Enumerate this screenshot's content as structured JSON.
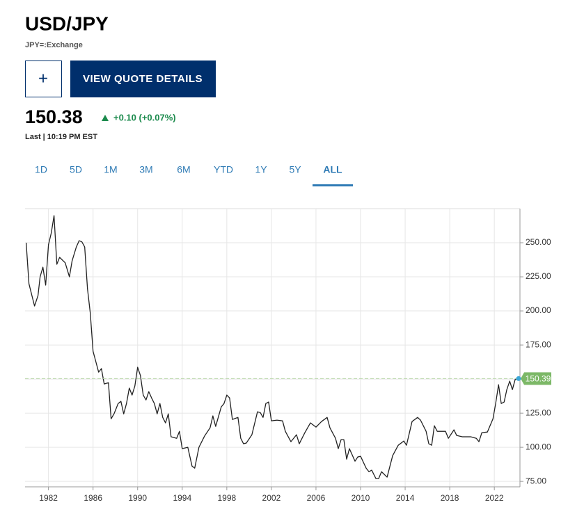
{
  "header": {
    "title": "USD/JPY",
    "symbol": "JPY=:Exchange"
  },
  "buttons": {
    "add": "+",
    "details": "VIEW QUOTE DETAILS"
  },
  "quote": {
    "price": "150.38",
    "change": "+0.10 (+0.07%)",
    "status": "Last | 10:19 PM EST"
  },
  "tabs": [
    "1D",
    "5D",
    "1M",
    "3M",
    "6M",
    "YTD",
    "1Y",
    "5Y",
    "ALL"
  ],
  "active_tab": "ALL",
  "chart_data": {
    "type": "line",
    "color": "#222222",
    "grid": true,
    "xlim": [
      1979.9,
      2024.3
    ],
    "ylim": [
      71,
      275
    ],
    "xticks": [
      1982,
      1986,
      1990,
      1994,
      1998,
      2002,
      2006,
      2010,
      2014,
      2018,
      2022
    ],
    "yticks": [
      {
        "value": 75,
        "label": "75.00"
      },
      {
        "value": 100,
        "label": "100.00"
      },
      {
        "value": 125,
        "label": "125.00"
      },
      {
        "value": 150,
        "label": "150.00"
      },
      {
        "value": 175,
        "label": "175.00"
      },
      {
        "value": 200,
        "label": "200.00"
      },
      {
        "value": 225,
        "label": "225.00"
      },
      {
        "value": 250,
        "label": "250.00"
      }
    ],
    "current_price": 150.39,
    "current_color": "#7cb867",
    "x": [
      1980.0,
      1980.25,
      1980.75,
      1981.06,
      1981.25,
      1981.5,
      1981.75,
      1982.0,
      1982.25,
      1982.5,
      1982.75,
      1983.0,
      1983.5,
      1983.88,
      1984.12,
      1984.5,
      1984.75,
      1985.0,
      1985.25,
      1985.5,
      1985.75,
      1986.0,
      1986.25,
      1986.5,
      1986.75,
      1987.0,
      1987.38,
      1987.62,
      1987.88,
      1988.25,
      1988.5,
      1988.75,
      1989.0,
      1989.25,
      1989.5,
      1989.75,
      1990.0,
      1990.25,
      1990.5,
      1990.75,
      1991.0,
      1991.25,
      1991.5,
      1991.75,
      1992.0,
      1992.25,
      1992.5,
      1992.75,
      1993.0,
      1993.5,
      1993.75,
      1994.0,
      1994.5,
      1994.88,
      1995.12,
      1995.5,
      1996.0,
      1996.5,
      1996.75,
      1997.0,
      1997.5,
      1997.75,
      1998.0,
      1998.25,
      1998.5,
      1999.0,
      1999.25,
      1999.5,
      1999.75,
      2000.25,
      2000.75,
      2001.0,
      2001.25,
      2001.5,
      2001.75,
      2002.0,
      2002.5,
      2003.0,
      2003.25,
      2003.75,
      2004.25,
      2004.5,
      2005.0,
      2005.5,
      2006.0,
      2006.5,
      2007.0,
      2007.25,
      2007.75,
      2008.0,
      2008.25,
      2008.5,
      2008.75,
      2009.0,
      2009.5,
      2009.75,
      2010.0,
      2010.5,
      2010.75,
      2011.0,
      2011.38,
      2011.62,
      2011.88,
      2012.38,
      2012.88,
      2013.38,
      2013.88,
      2014.12,
      2014.62,
      2015.12,
      2015.38,
      2015.88,
      2016.12,
      2016.38,
      2016.62,
      2016.88,
      2017.62,
      2017.88,
      2018.38,
      2018.62,
      2019.12,
      2019.88,
      2020.38,
      2020.62,
      2020.88,
      2021.38,
      2021.88,
      2022.12,
      2022.38,
      2022.62,
      2022.88,
      2023.12,
      2023.38,
      2023.62,
      2023.88,
      2024.06
    ],
    "values": [
      250.0,
      219.9,
      203.6,
      211.2,
      225.0,
      232.1,
      218.9,
      248.5,
      257.1,
      269.9,
      234.2,
      239.3,
      235.3,
      225.0,
      236.7,
      246.9,
      251.5,
      250.6,
      246.9,
      216.3,
      198.5,
      170.4,
      162.8,
      155.1,
      157.7,
      146.4,
      147.4,
      120.9,
      124.5,
      132.1,
      133.7,
      124.5,
      132.1,
      143.4,
      138.3,
      144.9,
      158.7,
      152.6,
      138.3,
      134.7,
      140.8,
      136.2,
      132.1,
      124.5,
      132.1,
      121.9,
      117.9,
      124.5,
      107.7,
      106.6,
      111.7,
      99.0,
      100.0,
      86.2,
      84.7,
      100.0,
      108.2,
      114.3,
      123.0,
      115.3,
      129.6,
      132.1,
      138.3,
      136.2,
      120.4,
      121.9,
      106.6,
      102.6,
      103.1,
      109.2,
      126.0,
      125.5,
      121.9,
      132.1,
      133.2,
      119.4,
      119.9,
      119.4,
      111.7,
      104.1,
      109.2,
      102.6,
      110.7,
      117.9,
      114.8,
      118.9,
      121.9,
      114.3,
      106.6,
      99.0,
      105.6,
      105.6,
      91.3,
      99.0,
      89.8,
      92.9,
      93.4,
      84.7,
      82.1,
      83.2,
      77.0,
      77.0,
      82.1,
      78.1,
      93.9,
      101.5,
      104.6,
      101.5,
      118.9,
      121.9,
      119.9,
      111.7,
      102.6,
      101.5,
      115.8,
      111.7,
      111.7,
      106.6,
      112.8,
      108.7,
      107.7,
      107.7,
      106.6,
      104.1,
      110.7,
      111.2,
      120.9,
      132.1,
      145.9,
      132.1,
      133.2,
      142.3,
      148.5,
      142.3,
      150.0,
      150.0
    ]
  }
}
